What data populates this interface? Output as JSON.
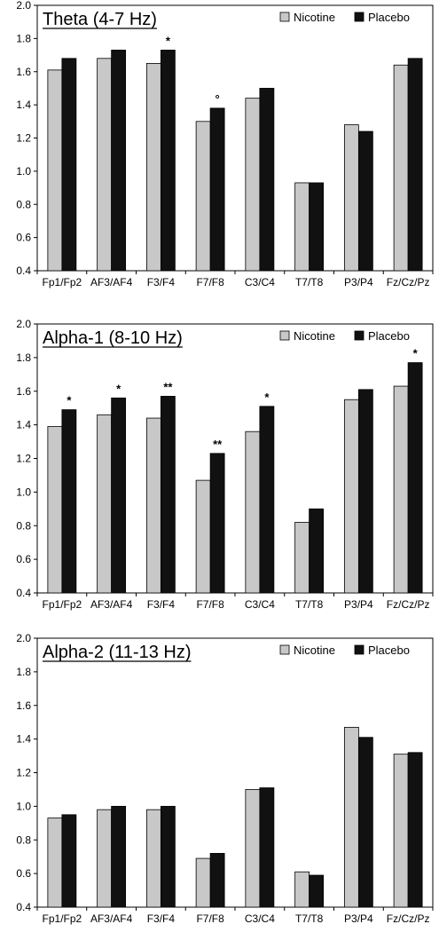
{
  "colors": {
    "nicotine": "#c8c8c8",
    "placebo": "#111111",
    "frame": "#000000"
  },
  "chart_data": [
    {
      "type": "bar",
      "title": "Theta (4-7 Hz)",
      "categories": [
        "Fp1/Fp2",
        "AF3/AF4",
        "F3/F4",
        "F7/F8",
        "C3/C4",
        "T7/T8",
        "P3/P4",
        "Fz/Cz/Pz"
      ],
      "series": [
        {
          "name": "Nicotine",
          "values": [
            1.61,
            1.68,
            1.65,
            1.3,
            1.44,
            0.93,
            1.28,
            1.64
          ]
        },
        {
          "name": "Placebo",
          "values": [
            1.68,
            1.73,
            1.73,
            1.38,
            1.5,
            0.93,
            1.24,
            1.68
          ]
        }
      ],
      "annotations": [
        {
          "category": "F3/F4",
          "text": "*"
        },
        {
          "category": "F7/F8",
          "text": "°"
        }
      ],
      "ylim": [
        0.4,
        2.0
      ],
      "yticks": [
        "0.4",
        "0.6",
        "0.8",
        "1.0",
        "1.2",
        "1.4",
        "1.6",
        "1.8",
        "2.0"
      ],
      "xlabel": "",
      "ylabel": "",
      "legend": "top-right",
      "grid": false
    },
    {
      "type": "bar",
      "title": "Alpha-1 (8-10 Hz)",
      "categories": [
        "Fp1/Fp2",
        "AF3/AF4",
        "F3/F4",
        "F7/F8",
        "C3/C4",
        "T7/T8",
        "P3/P4",
        "Fz/Cz/Pz"
      ],
      "series": [
        {
          "name": "Nicotine",
          "values": [
            1.39,
            1.46,
            1.44,
            1.07,
            1.36,
            0.82,
            1.55,
            1.63
          ]
        },
        {
          "name": "Placebo",
          "values": [
            1.49,
            1.56,
            1.57,
            1.23,
            1.51,
            0.9,
            1.61,
            1.77
          ]
        }
      ],
      "annotations": [
        {
          "category": "Fp1/Fp2",
          "text": "*"
        },
        {
          "category": "AF3/AF4",
          "text": "*"
        },
        {
          "category": "F3/F4",
          "text": "**"
        },
        {
          "category": "F7/F8",
          "text": "**"
        },
        {
          "category": "C3/C4",
          "text": "*"
        },
        {
          "category": "Fz/Cz/Pz",
          "text": "*"
        }
      ],
      "ylim": [
        0.4,
        2.0
      ],
      "yticks": [
        "0.4",
        "0.6",
        "0.8",
        "1.0",
        "1.2",
        "1.4",
        "1.6",
        "1.8",
        "2.0"
      ],
      "xlabel": "",
      "ylabel": "",
      "legend": "top-right",
      "grid": false
    },
    {
      "type": "bar",
      "title": "Alpha-2 (11-13 Hz)",
      "categories": [
        "Fp1/Fp2",
        "AF3/AF4",
        "F3/F4",
        "F7/F8",
        "C3/C4",
        "T7/T8",
        "P3/P4",
        "Fz/Cz/Pz"
      ],
      "series": [
        {
          "name": "Nicotine",
          "values": [
            0.93,
            0.98,
            0.98,
            0.69,
            1.1,
            0.61,
            1.47,
            1.31
          ]
        },
        {
          "name": "Placebo",
          "values": [
            0.95,
            1.0,
            1.0,
            0.72,
            1.11,
            0.59,
            1.41,
            1.32
          ]
        }
      ],
      "annotations": [],
      "ylim": [
        0.4,
        2.0
      ],
      "yticks": [
        "0.4",
        "0.6",
        "0.8",
        "1.0",
        "1.2",
        "1.4",
        "1.6",
        "1.8",
        "2.0"
      ],
      "xlabel": "",
      "ylabel": "",
      "legend": "top-right",
      "grid": false
    }
  ]
}
